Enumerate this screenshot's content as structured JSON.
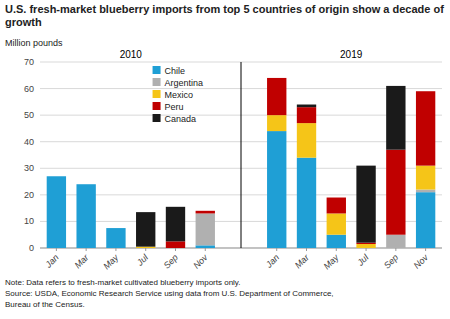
{
  "chart_data": {
    "type": "bar",
    "stacked": true,
    "title": "U.S. fresh-market blueberry imports from top 5 countries of origin show a decade of growth",
    "y_label": "Million pounds",
    "group_labels": [
      "2010",
      "2019"
    ],
    "notes": [
      "Note: Data refers to fresh-market cultivated blueberry imports only.",
      "Source: USDA, Economic Research Service using data from U.S. Department of Commerce,",
      "Bureau of the Census."
    ],
    "categories": [
      "Jan",
      "Mar",
      "May",
      "Jul",
      "Sep",
      "Nov",
      "Jan",
      "Mar",
      "May",
      "Jul",
      "Sep",
      "Nov"
    ],
    "series": [
      {
        "name": "Chile",
        "color": "#1F9FD5",
        "values": [
          27,
          24,
          7.5,
          0,
          0,
          1,
          44,
          34,
          5,
          0,
          0,
          21
        ]
      },
      {
        "name": "Argentina",
        "color": "#B0B0B0",
        "values": [
          0,
          0,
          0,
          0,
          0,
          12,
          0,
          0,
          0,
          0,
          5,
          1
        ]
      },
      {
        "name": "Mexico",
        "color": "#F5C518",
        "values": [
          0,
          0,
          0,
          0.5,
          0,
          0,
          6,
          13,
          8,
          1.5,
          0,
          9
        ]
      },
      {
        "name": "Peru",
        "color": "#C00000",
        "values": [
          0,
          0,
          0,
          0,
          2.5,
          1,
          14,
          6,
          6,
          0.5,
          32,
          28
        ]
      },
      {
        "name": "Canada",
        "color": "#1A1A1A",
        "values": [
          0,
          0,
          0,
          13,
          13,
          0,
          0,
          1,
          0,
          29,
          24,
          0
        ]
      }
    ],
    "ylim": [
      0,
      70
    ],
    "yticks": [
      0,
      10,
      20,
      30,
      40,
      50,
      60,
      70
    ],
    "grid": true,
    "legend": "upper left"
  }
}
